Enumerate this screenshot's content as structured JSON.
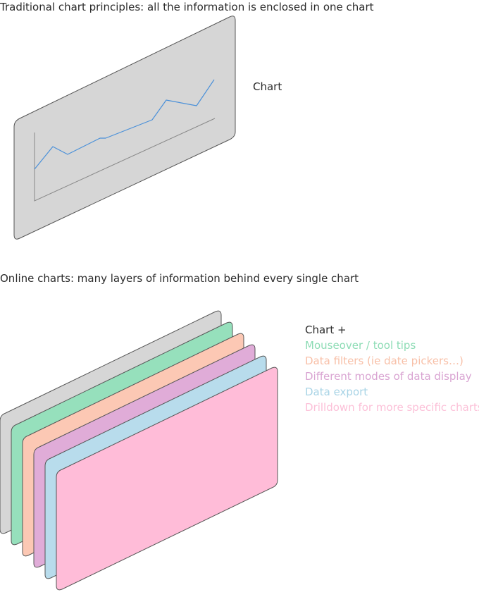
{
  "top": {
    "caption": "Traditional chart principles: all the information is enclosed in one chart",
    "chart_label": "Chart"
  },
  "bottom": {
    "caption": "Online charts: many layers of information behind every single chart",
    "layers": [
      {
        "text": "Chart +",
        "panel_color": "#d6d6d6",
        "text_color": "#2b2b2b"
      },
      {
        "text": "Mouseover / tool tips",
        "panel_color": "#96e0bc",
        "text_color": "#8ddcb5"
      },
      {
        "text": "Data filters (ie date pickers…)",
        "panel_color": "#fcc8b4",
        "text_color": "#f8c0a8"
      },
      {
        "text": "Different modes of data display",
        "panel_color": "#e0acd8",
        "text_color": "#d9a4d2"
      },
      {
        "text": "Data export",
        "panel_color": "#b8dcec",
        "text_color": "#a9d4e6"
      },
      {
        "text": "Drilldown for more specific charts",
        "panel_color": "#ffbcd8",
        "text_color": "#fcc0d8"
      }
    ]
  }
}
